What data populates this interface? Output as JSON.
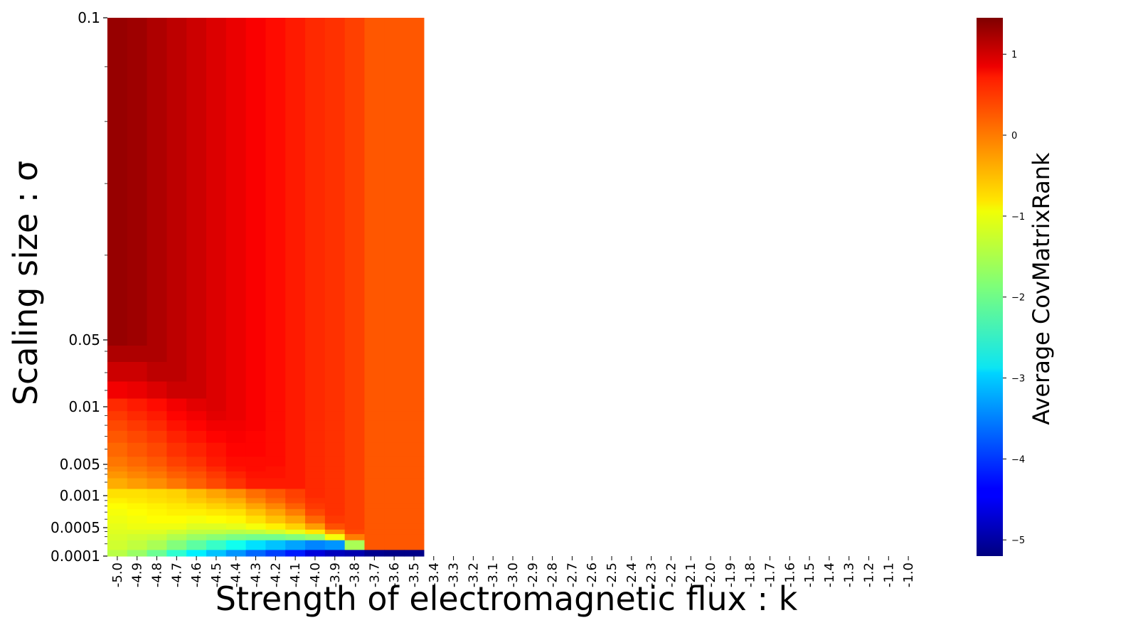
{
  "chart_data": {
    "type": "heatmap",
    "title": "",
    "xlabel": "Strength of electromagnetic flux : k",
    "ylabel": "Scaling size : σ",
    "colorbar_label": "Average CovMatrixRank",
    "colormap": "jet",
    "color_range": [
      -5.2,
      1.45
    ],
    "colorbar_ticks": [
      "1",
      "0",
      "−1",
      "−2",
      "−3",
      "−4",
      "−5"
    ],
    "colorbar_tick_values": [
      1,
      0,
      -1,
      -2,
      -3,
      -4,
      -5
    ],
    "x_ticks": [
      "-5.0",
      "-4.9",
      "-4.8",
      "-4.7",
      "-4.6",
      "-4.5",
      "-4.4",
      "-4.3",
      "-4.2",
      "-4.1",
      "-4.0",
      "-3.9",
      "-3.8",
      "-3.7",
      "-3.6",
      "-3.5",
      "-3.4",
      "-3.3",
      "-3.2",
      "-3.1",
      "-3.0",
      "-2.9",
      "-2.8",
      "-2.7",
      "-2.6",
      "-2.5",
      "-2.4",
      "-2.3",
      "-2.2",
      "-2.1",
      "-2.0",
      "-1.9",
      "-1.8",
      "-1.7",
      "-1.6",
      "-1.5",
      "-1.4",
      "-1.3",
      "-1.2",
      "-1.1",
      "-1.0"
    ],
    "x_range": [
      -5.0,
      -1.0
    ],
    "y_ticks": [
      "0.1",
      "0.05",
      "0.01",
      "0.005",
      "0.001",
      "0.0005",
      "0.0001"
    ],
    "y_tick_values": [
      0.1,
      0.05,
      0.01,
      0.005,
      0.001,
      0.0005,
      0.0001
    ],
    "y_range": [
      0.0001,
      0.1
    ],
    "x": [
      -5.0,
      -4.9,
      -4.8,
      -4.7,
      -4.6,
      -4.5,
      -4.4,
      -4.3,
      -4.2,
      -4.1,
      -4.0,
      -3.9,
      -3.8,
      -3.7,
      -3.6,
      -3.5
    ],
    "y": [
      0.1,
      0.05,
      0.04,
      0.03,
      0.02,
      0.01,
      0.009,
      0.008,
      0.007,
      0.006,
      0.005,
      0.004,
      0.003,
      0.002,
      0.001,
      0.0009,
      0.0008,
      0.0007,
      0.0006,
      0.0005,
      0.0004,
      0.0003,
      0.0002,
      0.0001
    ],
    "z": [
      [
        1.3,
        1.25,
        1.15,
        1.05,
        0.95,
        0.85,
        0.75,
        0.65,
        0.55,
        0.45,
        0.35,
        0.3,
        0.2,
        0.05,
        0.05,
        0.05
      ],
      [
        1.3,
        1.25,
        1.15,
        1.05,
        0.95,
        0.85,
        0.75,
        0.65,
        0.55,
        0.45,
        0.35,
        0.3,
        0.2,
        0.05,
        0.05,
        0.05
      ],
      [
        1.15,
        1.15,
        1.15,
        1.05,
        0.95,
        0.85,
        0.75,
        0.65,
        0.55,
        0.45,
        0.35,
        0.3,
        0.2,
        0.05,
        0.05,
        0.05
      ],
      [
        0.95,
        0.95,
        1.05,
        1.05,
        0.95,
        0.85,
        0.75,
        0.65,
        0.55,
        0.45,
        0.35,
        0.3,
        0.2,
        0.05,
        0.05,
        0.05
      ],
      [
        0.7,
        0.75,
        0.85,
        0.95,
        0.95,
        0.85,
        0.75,
        0.65,
        0.55,
        0.45,
        0.35,
        0.3,
        0.2,
        0.05,
        0.05,
        0.05
      ],
      [
        0.35,
        0.45,
        0.55,
        0.7,
        0.8,
        0.85,
        0.75,
        0.65,
        0.55,
        0.45,
        0.35,
        0.3,
        0.2,
        0.05,
        0.05,
        0.05
      ],
      [
        0.25,
        0.35,
        0.45,
        0.6,
        0.7,
        0.8,
        0.75,
        0.65,
        0.55,
        0.45,
        0.35,
        0.3,
        0.2,
        0.05,
        0.05,
        0.05
      ],
      [
        0.15,
        0.25,
        0.35,
        0.5,
        0.6,
        0.7,
        0.7,
        0.65,
        0.55,
        0.45,
        0.35,
        0.3,
        0.2,
        0.05,
        0.05,
        0.05
      ],
      [
        0.05,
        0.15,
        0.25,
        0.4,
        0.5,
        0.6,
        0.65,
        0.6,
        0.55,
        0.45,
        0.35,
        0.3,
        0.2,
        0.05,
        0.05,
        0.05
      ],
      [
        -0.05,
        0.05,
        0.15,
        0.3,
        0.4,
        0.5,
        0.6,
        0.6,
        0.55,
        0.45,
        0.35,
        0.3,
        0.2,
        0.05,
        0.05,
        0.05
      ],
      [
        -0.15,
        -0.05,
        0.05,
        0.2,
        0.3,
        0.45,
        0.55,
        0.55,
        0.55,
        0.45,
        0.35,
        0.3,
        0.2,
        0.05,
        0.05,
        0.05
      ],
      [
        -0.25,
        -0.15,
        -0.05,
        0.1,
        0.2,
        0.35,
        0.5,
        0.55,
        0.5,
        0.45,
        0.35,
        0.3,
        0.2,
        0.05,
        0.05,
        0.05
      ],
      [
        -0.35,
        -0.25,
        -0.15,
        0.0,
        0.1,
        0.25,
        0.4,
        0.5,
        0.5,
        0.45,
        0.35,
        0.3,
        0.2,
        0.05,
        0.05,
        0.05
      ],
      [
        -0.5,
        -0.4,
        -0.3,
        -0.15,
        0.0,
        0.15,
        0.3,
        0.45,
        0.45,
        0.45,
        0.35,
        0.3,
        0.2,
        0.05,
        0.05,
        0.05
      ],
      [
        -0.85,
        -0.85,
        -0.8,
        -0.75,
        -0.6,
        -0.45,
        -0.3,
        -0.1,
        0.05,
        0.2,
        0.35,
        0.3,
        0.2,
        0.05,
        0.05,
        0.05
      ],
      [
        -0.95,
        -0.9,
        -0.85,
        -0.8,
        -0.7,
        -0.6,
        -0.5,
        -0.25,
        -0.05,
        0.15,
        0.3,
        0.3,
        0.2,
        0.05,
        0.05,
        0.05
      ],
      [
        -1.05,
        -1.0,
        -0.95,
        -0.9,
        -0.85,
        -0.75,
        -0.65,
        -0.45,
        -0.25,
        0.0,
        0.25,
        0.3,
        0.2,
        0.05,
        0.05,
        0.05
      ],
      [
        -1.1,
        -1.05,
        -1.0,
        -0.95,
        -0.95,
        -0.9,
        -0.85,
        -0.65,
        -0.45,
        -0.2,
        0.15,
        0.3,
        0.2,
        0.05,
        0.05,
        0.05
      ],
      [
        -1.15,
        -1.1,
        -1.05,
        -1.05,
        -1.1,
        -1.05,
        -1.0,
        -0.85,
        -0.65,
        -0.45,
        -0.05,
        0.25,
        0.2,
        0.05,
        0.05,
        0.05
      ],
      [
        -1.2,
        -1.15,
        -1.15,
        -1.15,
        -1.25,
        -1.25,
        -1.2,
        -1.1,
        -0.95,
        -0.75,
        -0.4,
        0.1,
        0.2,
        0.05,
        0.05,
        0.05
      ],
      [
        -1.25,
        -1.25,
        -1.25,
        -1.35,
        -1.45,
        -1.45,
        -1.5,
        -1.45,
        -1.35,
        -1.2,
        -0.9,
        -0.35,
        0.15,
        0.05,
        0.05,
        0.05
      ],
      [
        -1.3,
        -1.35,
        -1.4,
        -1.55,
        -1.7,
        -1.8,
        -1.9,
        -1.95,
        -1.95,
        -1.85,
        -1.7,
        -1.1,
        -0.2,
        0.05,
        0.05,
        0.05
      ],
      [
        -1.35,
        -1.45,
        -1.6,
        -1.85,
        -2.1,
        -2.35,
        -2.6,
        -2.9,
        -3.1,
        -3.3,
        -3.5,
        -3.4,
        -1.6,
        0.05,
        0.05,
        0.05
      ],
      [
        -1.5,
        -1.7,
        -2.0,
        -2.4,
        -2.8,
        -3.1,
        -3.4,
        -3.7,
        -3.95,
        -4.2,
        -4.6,
        -4.8,
        -4.9,
        -5.1,
        -5.15,
        -5.15
      ]
    ]
  }
}
